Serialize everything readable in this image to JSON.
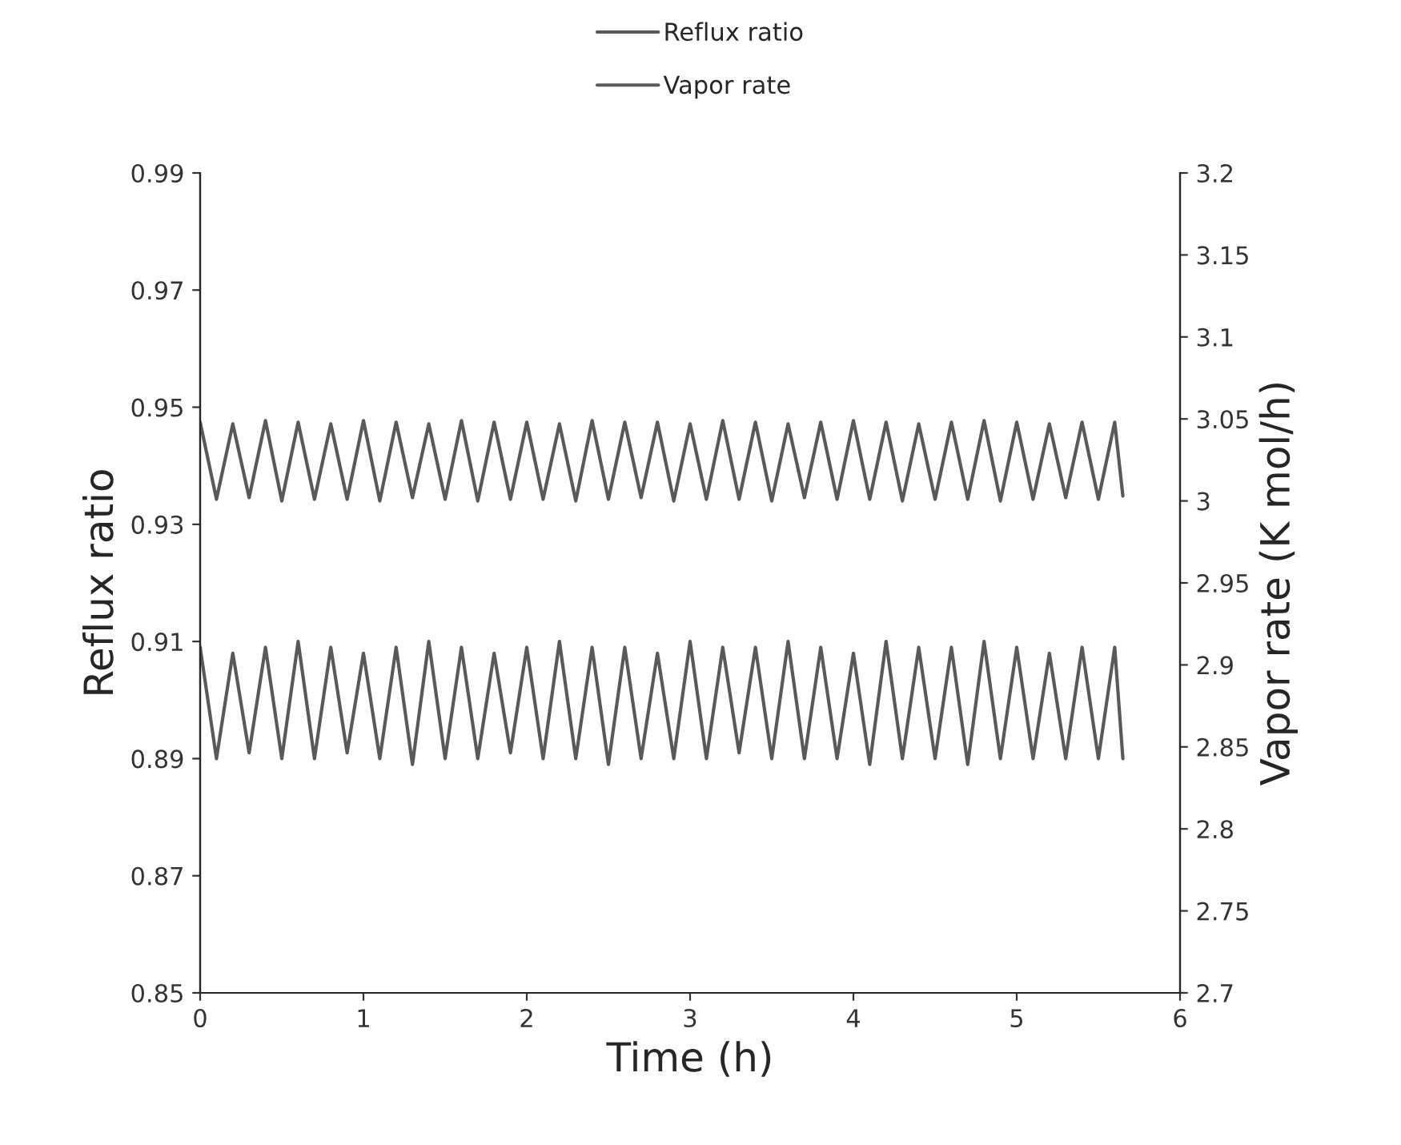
{
  "chart_data": {
    "type": "line",
    "xlabel": "Time (h)",
    "ylabel": "Reflux ratio",
    "y2label": "Vapor rate (K mol/h)",
    "x": [
      0,
      0.1,
      0.2,
      0.3,
      0.4,
      0.5,
      0.6,
      0.7,
      0.8,
      0.9,
      1.0,
      1.1,
      1.2,
      1.3,
      1.4,
      1.5,
      1.6,
      1.7,
      1.8,
      1.9,
      2.0,
      2.1,
      2.2,
      2.3,
      2.4,
      2.5,
      2.6,
      2.7,
      2.8,
      2.9,
      3.0,
      3.1,
      3.2,
      3.3,
      3.4,
      3.5,
      3.6,
      3.7,
      3.8,
      3.9,
      4.0,
      4.1,
      4.2,
      4.3,
      4.4,
      4.5,
      4.6,
      4.7,
      4.8,
      4.9,
      5.0,
      5.1,
      5.2,
      5.3,
      5.4,
      5.5,
      5.6,
      5.65
    ],
    "series": [
      {
        "name": "Reflux ratio",
        "color": "#595959",
        "values": [
          0.909,
          0.89,
          0.908,
          0.891,
          0.909,
          0.89,
          0.91,
          0.89,
          0.909,
          0.891,
          0.908,
          0.89,
          0.909,
          0.889,
          0.91,
          0.89,
          0.909,
          0.89,
          0.908,
          0.891,
          0.909,
          0.89,
          0.91,
          0.89,
          0.909,
          0.889,
          0.909,
          0.89,
          0.908,
          0.89,
          0.91,
          0.89,
          0.909,
          0.891,
          0.909,
          0.89,
          0.91,
          0.89,
          0.909,
          0.89,
          0.908,
          0.889,
          0.91,
          0.89,
          0.909,
          0.89,
          0.909,
          0.889,
          0.91,
          0.89,
          0.909,
          0.89,
          0.908,
          0.89,
          0.909,
          0.89,
          0.909,
          0.89
        ]
      },
      {
        "name": "Vapor rate",
        "color": "#595959",
        "axis": "y2",
        "values": [
          3.048,
          3.001,
          3.047,
          3.002,
          3.049,
          3.0,
          3.048,
          3.001,
          3.047,
          3.001,
          3.049,
          3.0,
          3.048,
          3.002,
          3.047,
          3.001,
          3.049,
          3.0,
          3.048,
          3.001,
          3.048,
          3.001,
          3.047,
          3.0,
          3.049,
          3.001,
          3.048,
          3.002,
          3.048,
          3.0,
          3.047,
          3.001,
          3.049,
          3.001,
          3.048,
          3.0,
          3.047,
          3.002,
          3.048,
          3.001,
          3.049,
          3.001,
          3.048,
          3.0,
          3.047,
          3.001,
          3.048,
          3.001,
          3.049,
          3.0,
          3.048,
          3.001,
          3.047,
          3.002,
          3.048,
          3.001,
          3.048,
          3.003
        ]
      }
    ],
    "xlim": [
      0,
      6
    ],
    "xticks": [
      0,
      1,
      2,
      3,
      4,
      5,
      6
    ],
    "ylim": [
      0.85,
      0.99
    ],
    "yticks": [
      {
        "value": 0.85,
        "label": "0.85"
      },
      {
        "value": 0.87,
        "label": "0.87"
      },
      {
        "value": 0.89,
        "label": "0.89"
      },
      {
        "value": 0.91,
        "label": "0.91"
      },
      {
        "value": 0.93,
        "label": "0.93"
      },
      {
        "value": 0.95,
        "label": "0.95"
      },
      {
        "value": 0.97,
        "label": "0.97"
      },
      {
        "value": 0.99,
        "label": "0.99"
      }
    ],
    "y2lim": [
      2.7,
      3.2
    ],
    "y2ticks": [
      2.7,
      2.75,
      2.8,
      2.85,
      2.9,
      2.95,
      3,
      3.05,
      3.1,
      3.15,
      3.2
    ],
    "legend": "top",
    "grid": false
  }
}
